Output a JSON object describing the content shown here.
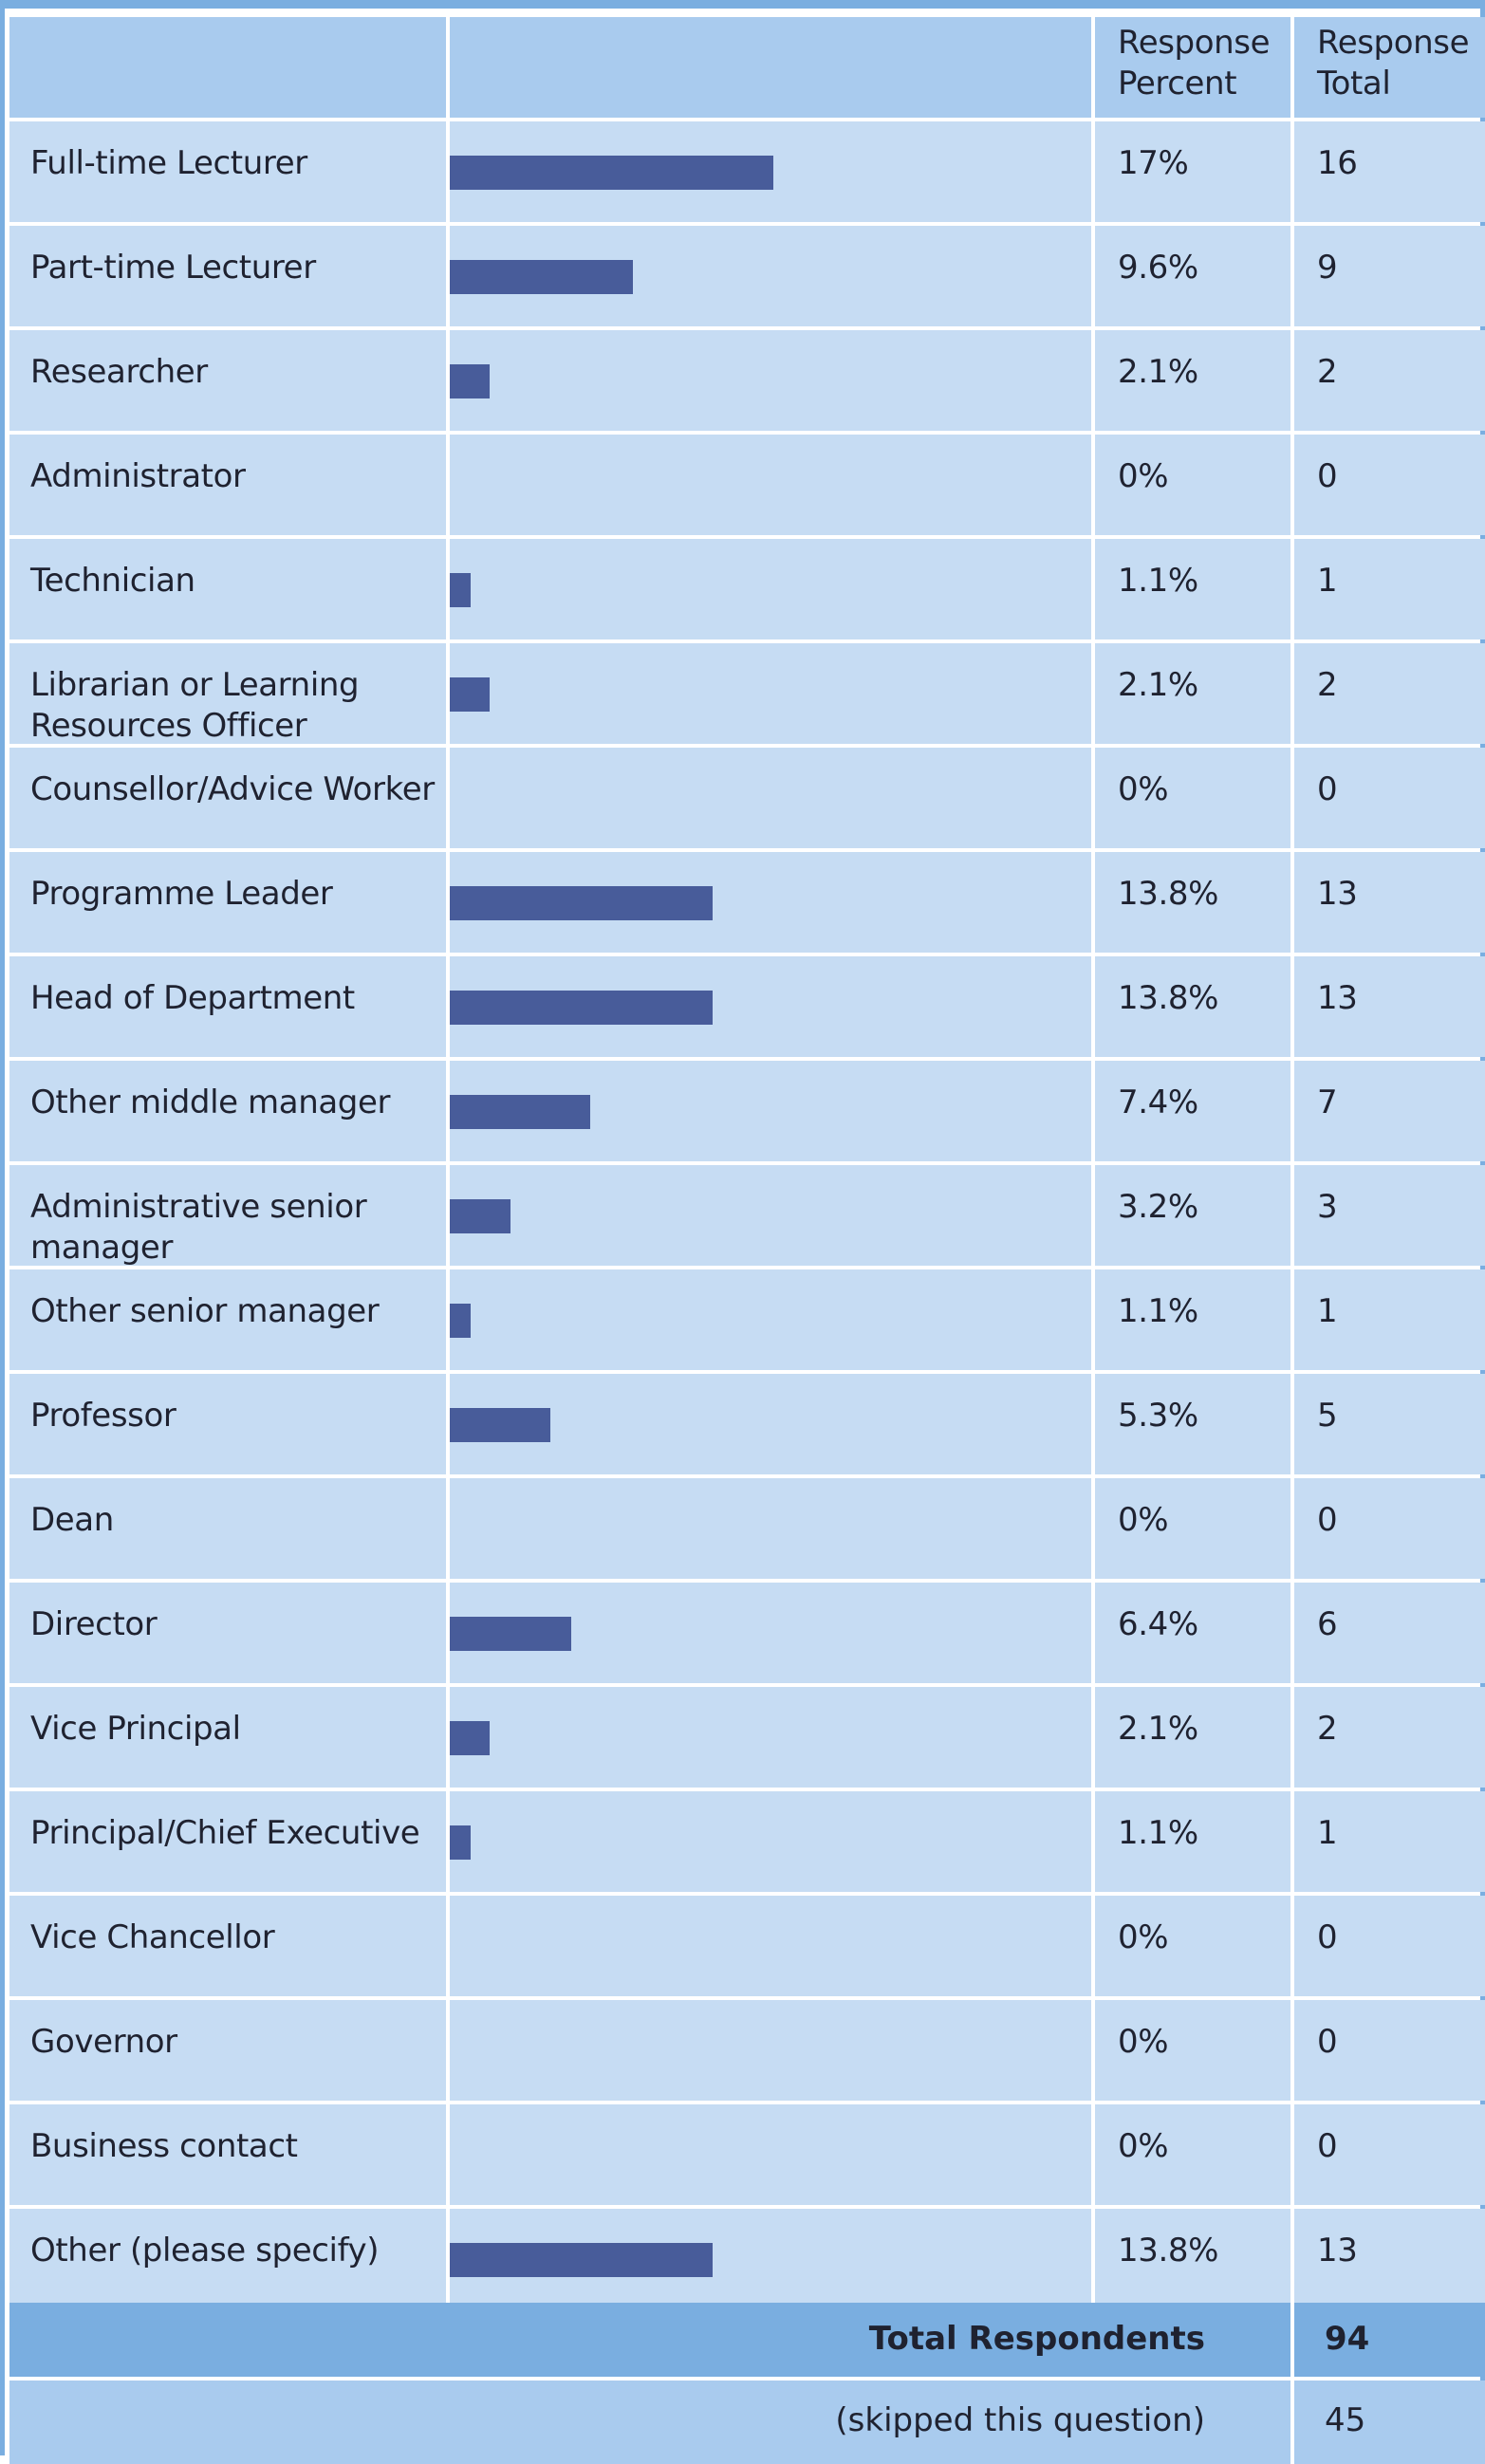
{
  "chart_data": {
    "type": "table",
    "columns": [
      "",
      "",
      "Response Percent",
      "Response Total"
    ],
    "header": {
      "percent_line1": "Response",
      "percent_line2": "Percent",
      "total_line1": "Response",
      "total_line2": "Total"
    },
    "bar_scale_max_percent": 33.7,
    "rows": [
      {
        "label": "Full-time Lecturer",
        "percent": 17,
        "percent_text": "17%",
        "total": "16"
      },
      {
        "label": "Part-time Lecturer",
        "percent": 9.6,
        "percent_text": "9.6%",
        "total": "9"
      },
      {
        "label": "Researcher",
        "percent": 2.1,
        "percent_text": "2.1%",
        "total": "2"
      },
      {
        "label": "Administrator",
        "percent": 0,
        "percent_text": "0%",
        "total": "0"
      },
      {
        "label": "Technician",
        "percent": 1.1,
        "percent_text": "1.1%",
        "total": "1"
      },
      {
        "label": "Librarian or Learning Resources Officer",
        "percent": 2.1,
        "percent_text": "2.1%",
        "total": "2"
      },
      {
        "label": "Counsellor/Advice Worker",
        "percent": 0,
        "percent_text": "0%",
        "total": "0"
      },
      {
        "label": "Programme Leader",
        "percent": 13.8,
        "percent_text": "13.8%",
        "total": "13"
      },
      {
        "label": "Head of Department",
        "percent": 13.8,
        "percent_text": "13.8%",
        "total": "13"
      },
      {
        "label": "Other middle manager",
        "percent": 7.4,
        "percent_text": "7.4%",
        "total": "7"
      },
      {
        "label": "Administrative senior manager",
        "percent": 3.2,
        "percent_text": "3.2%",
        "total": "3"
      },
      {
        "label": "Other senior manager",
        "percent": 1.1,
        "percent_text": "1.1%",
        "total": "1"
      },
      {
        "label": "Professor",
        "percent": 5.3,
        "percent_text": "5.3%",
        "total": "5"
      },
      {
        "label": "Dean",
        "percent": 0,
        "percent_text": "0%",
        "total": "0"
      },
      {
        "label": "Director",
        "percent": 6.4,
        "percent_text": "6.4%",
        "total": "6"
      },
      {
        "label": "Vice Principal",
        "percent": 2.1,
        "percent_text": "2.1%",
        "total": "2"
      },
      {
        "label": "Principal/Chief Executive",
        "percent": 1.1,
        "percent_text": "1.1%",
        "total": "1"
      },
      {
        "label": "Vice Chancellor",
        "percent": 0,
        "percent_text": "0%",
        "total": "0"
      },
      {
        "label": "Governor",
        "percent": 0,
        "percent_text": "0%",
        "total": "0"
      },
      {
        "label": "Business contact",
        "percent": 0,
        "percent_text": "0%",
        "total": "0"
      },
      {
        "label": "Other (please specify)",
        "percent": 13.8,
        "percent_text": "13.8%",
        "total": "13"
      }
    ],
    "footer": {
      "total_label": "Total Respondents",
      "total_value": "94",
      "skipped_label": "(skipped this question)",
      "skipped_value": "45"
    }
  },
  "colors": {
    "frame": "#7aaee0",
    "header_bg": "#a9cbee",
    "row_bg": "#c6dcf3",
    "bar": "#485c9a",
    "total_bg": "#7aaee0"
  }
}
